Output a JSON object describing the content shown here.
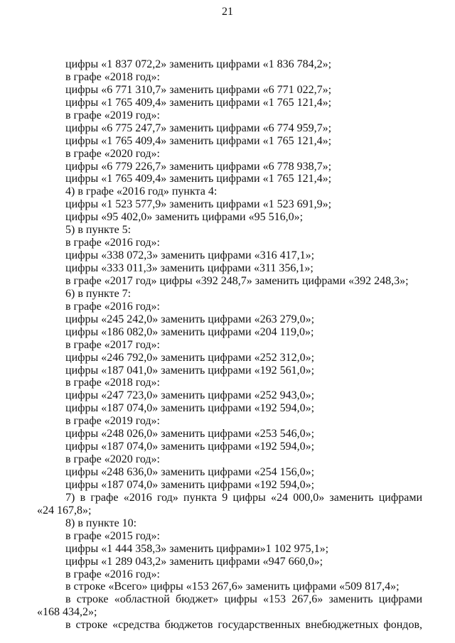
{
  "page_number": "21",
  "lines": [
    {
      "text": "цифры «1 837 072,2» заменить цифрами «1 836 784,2»;"
    },
    {
      "text": "в графе «2018 год»:"
    },
    {
      "text": "цифры «6 771 310,7» заменить цифрами «6 771 022,7»;"
    },
    {
      "text": "цифры «1 765 409,4» заменить цифрами «1 765 121,4»;"
    },
    {
      "text": "в графе «2019 год»:"
    },
    {
      "text": "цифры «6 775 247,7» заменить цифрами «6 774 959,7»;"
    },
    {
      "text": "цифры «1 765 409,4» заменить цифрами «1 765 121,4»;"
    },
    {
      "text": "в графе «2020 год»:"
    },
    {
      "text": "цифры «6 779 226,7» заменить цифрами «6 778 938,7»;"
    },
    {
      "text": "цифры «1 765 409,4» заменить цифрами «1 765 121,4»;"
    },
    {
      "text": "4) в графе «2016 год» пункта 4:"
    },
    {
      "text": "цифры «1 523 577,9» заменить цифрами «1 523 691,9»;"
    },
    {
      "text": "цифры «95 402,0» заменить цифрами «95 516,0»;"
    },
    {
      "text": "5) в пункте 5:"
    },
    {
      "text": "в графе «2016 год»:"
    },
    {
      "text": "цифры «338 072,3» заменить цифрами «316 417,1»;"
    },
    {
      "text": "цифры «333 011,3» заменить цифрами «311 356,1»;"
    },
    {
      "text": "в графе «2017 год» цифры «392 248,7» заменить цифрами «392 248,3»;"
    },
    {
      "text": "6) в пункте 7:"
    },
    {
      "text": "в графе «2016 год»:"
    },
    {
      "text": "цифры «245 242,0» заменить цифрами «263 279,0»;"
    },
    {
      "text": "цифры «186 082,0» заменить цифрами «204 119,0»;"
    },
    {
      "text": "в графе «2017 год»:"
    },
    {
      "text": "цифры «246 792,0» заменить цифрами «252 312,0»;"
    },
    {
      "text": "цифры «187 041,0» заменить цифрами «192 561,0»;"
    },
    {
      "text": "в графе «2018 год»:"
    },
    {
      "text": "цифры «247 723,0» заменить цифрами «252 943,0»;"
    },
    {
      "text": "цифры «187 074,0» заменить цифрами «192 594,0»;"
    },
    {
      "text": "в графе «2019 год»:"
    },
    {
      "text": "цифры «248 026,0» заменить цифрами «253 546,0»;"
    },
    {
      "text": "цифры «187 074,0» заменить цифрами «192 594,0»;"
    },
    {
      "text": "в графе «2020 год»:"
    },
    {
      "text": "цифры «248 636,0» заменить цифрами «254 156,0»;"
    },
    {
      "text": "цифры «187 074,0» заменить цифрами «192 594,0»;"
    },
    {
      "text": "7) в графе «2016 год» пункта 9 цифры «24 000,0» заменить цифрами",
      "style": "j"
    },
    {
      "text": "«24 167,8»;",
      "style": "c"
    },
    {
      "text": "8) в пункте 10:"
    },
    {
      "text": "в графе «2015 год»:"
    },
    {
      "text": "цифры «1 444 358,3» заменить цифрами»1 102 975,1»;"
    },
    {
      "text": "цифры «1 289 043,2» заменить цифрами «947 660,0»;"
    },
    {
      "text": "в графе «2016 год»:"
    },
    {
      "text": "в строке «Всего» цифры «153 267,6» заменить цифрами «509 817,4»;"
    },
    {
      "text": "в строке «областной бюджет» цифры «153 267,6» заменить цифрами",
      "style": "j"
    },
    {
      "text": "«168 434,2»;",
      "style": "c"
    },
    {
      "text": "в строке «средства бюджетов государственных внебюджетных фондов,",
      "style": "j"
    }
  ]
}
